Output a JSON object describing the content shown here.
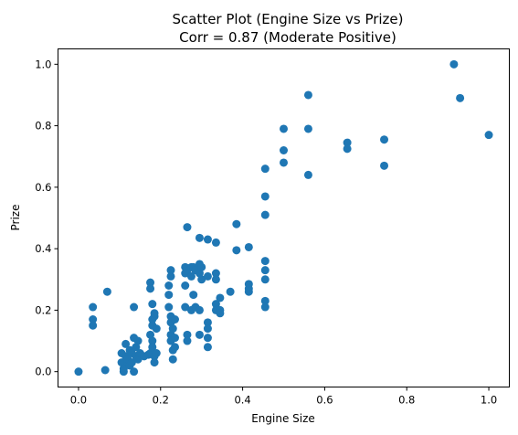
{
  "chart_data": {
    "type": "scatter",
    "title": "Scatter Plot (Engine Size vs Prize)",
    "subtitle": "Corr = 0.87 (Moderate Positive)",
    "xlabel": "Engine Size",
    "ylabel": "Prize",
    "xlim": [
      -0.05,
      1.05
    ],
    "ylim": [
      -0.05,
      1.05
    ],
    "xticks": [
      0.0,
      0.2,
      0.4,
      0.6,
      0.8,
      1.0
    ],
    "yticks": [
      0.0,
      0.2,
      0.4,
      0.6,
      0.8,
      1.0
    ],
    "xtick_labels": [
      "0.0",
      "0.2",
      "0.4",
      "0.6",
      "0.8",
      "1.0"
    ],
    "ytick_labels": [
      "0.0",
      "0.2",
      "0.4",
      "0.6",
      "0.8",
      "1.0"
    ],
    "grid": false,
    "marker_color": "#1f77b4",
    "points": [
      [
        0.0,
        0.0
      ],
      [
        0.035,
        0.21
      ],
      [
        0.035,
        0.17
      ],
      [
        0.035,
        0.15
      ],
      [
        0.065,
        0.005
      ],
      [
        0.07,
        0.26
      ],
      [
        0.105,
        0.06
      ],
      [
        0.105,
        0.03
      ],
      [
        0.11,
        0.01
      ],
      [
        0.11,
        0.0
      ],
      [
        0.115,
        0.05
      ],
      [
        0.115,
        0.09
      ],
      [
        0.12,
        0.03
      ],
      [
        0.12,
        0.04
      ],
      [
        0.125,
        0.07
      ],
      [
        0.125,
        0.02
      ],
      [
        0.13,
        0.06
      ],
      [
        0.13,
        0.03
      ],
      [
        0.135,
        0.0
      ],
      [
        0.135,
        0.11
      ],
      [
        0.135,
        0.21
      ],
      [
        0.14,
        0.08
      ],
      [
        0.14,
        0.05
      ],
      [
        0.145,
        0.04
      ],
      [
        0.145,
        0.1
      ],
      [
        0.15,
        0.06
      ],
      [
        0.16,
        0.05
      ],
      [
        0.17,
        0.055
      ],
      [
        0.175,
        0.12
      ],
      [
        0.175,
        0.06
      ],
      [
        0.175,
        0.29
      ],
      [
        0.175,
        0.27
      ],
      [
        0.18,
        0.22
      ],
      [
        0.18,
        0.17
      ],
      [
        0.18,
        0.15
      ],
      [
        0.18,
        0.1
      ],
      [
        0.18,
        0.08
      ],
      [
        0.185,
        0.18
      ],
      [
        0.185,
        0.19
      ],
      [
        0.185,
        0.05
      ],
      [
        0.185,
        0.03
      ],
      [
        0.19,
        0.14
      ],
      [
        0.19,
        0.06
      ],
      [
        0.22,
        0.21
      ],
      [
        0.22,
        0.28
      ],
      [
        0.22,
        0.25
      ],
      [
        0.225,
        0.33
      ],
      [
        0.225,
        0.31
      ],
      [
        0.225,
        0.18
      ],
      [
        0.225,
        0.16
      ],
      [
        0.225,
        0.12
      ],
      [
        0.225,
        0.1
      ],
      [
        0.23,
        0.14
      ],
      [
        0.23,
        0.07
      ],
      [
        0.23,
        0.04
      ],
      [
        0.235,
        0.17
      ],
      [
        0.235,
        0.11
      ],
      [
        0.235,
        0.08
      ],
      [
        0.26,
        0.34
      ],
      [
        0.26,
        0.32
      ],
      [
        0.26,
        0.28
      ],
      [
        0.26,
        0.21
      ],
      [
        0.265,
        0.47
      ],
      [
        0.265,
        0.33
      ],
      [
        0.265,
        0.12
      ],
      [
        0.265,
        0.1
      ],
      [
        0.275,
        0.34
      ],
      [
        0.275,
        0.31
      ],
      [
        0.275,
        0.2
      ],
      [
        0.28,
        0.34
      ],
      [
        0.28,
        0.25
      ],
      [
        0.285,
        0.33
      ],
      [
        0.285,
        0.21
      ],
      [
        0.295,
        0.435
      ],
      [
        0.295,
        0.35
      ],
      [
        0.295,
        0.32
      ],
      [
        0.295,
        0.2
      ],
      [
        0.295,
        0.12
      ],
      [
        0.3,
        0.34
      ],
      [
        0.3,
        0.3
      ],
      [
        0.315,
        0.43
      ],
      [
        0.315,
        0.31
      ],
      [
        0.315,
        0.16
      ],
      [
        0.315,
        0.14
      ],
      [
        0.315,
        0.11
      ],
      [
        0.315,
        0.08
      ],
      [
        0.335,
        0.42
      ],
      [
        0.335,
        0.32
      ],
      [
        0.335,
        0.3
      ],
      [
        0.335,
        0.22
      ],
      [
        0.335,
        0.2
      ],
      [
        0.345,
        0.24
      ],
      [
        0.345,
        0.2
      ],
      [
        0.345,
        0.19
      ],
      [
        0.37,
        0.26
      ],
      [
        0.385,
        0.48
      ],
      [
        0.385,
        0.395
      ],
      [
        0.415,
        0.405
      ],
      [
        0.415,
        0.285
      ],
      [
        0.415,
        0.27
      ],
      [
        0.415,
        0.26
      ],
      [
        0.455,
        0.66
      ],
      [
        0.455,
        0.57
      ],
      [
        0.455,
        0.51
      ],
      [
        0.455,
        0.36
      ],
      [
        0.455,
        0.33
      ],
      [
        0.455,
        0.3
      ],
      [
        0.455,
        0.23
      ],
      [
        0.455,
        0.21
      ],
      [
        0.5,
        0.79
      ],
      [
        0.5,
        0.72
      ],
      [
        0.5,
        0.68
      ],
      [
        0.56,
        0.9
      ],
      [
        0.56,
        0.79
      ],
      [
        0.56,
        0.64
      ],
      [
        0.655,
        0.745
      ],
      [
        0.655,
        0.725
      ],
      [
        0.745,
        0.755
      ],
      [
        0.745,
        0.67
      ],
      [
        0.915,
        1.0
      ],
      [
        0.93,
        0.89
      ],
      [
        1.0,
        0.77
      ]
    ]
  }
}
